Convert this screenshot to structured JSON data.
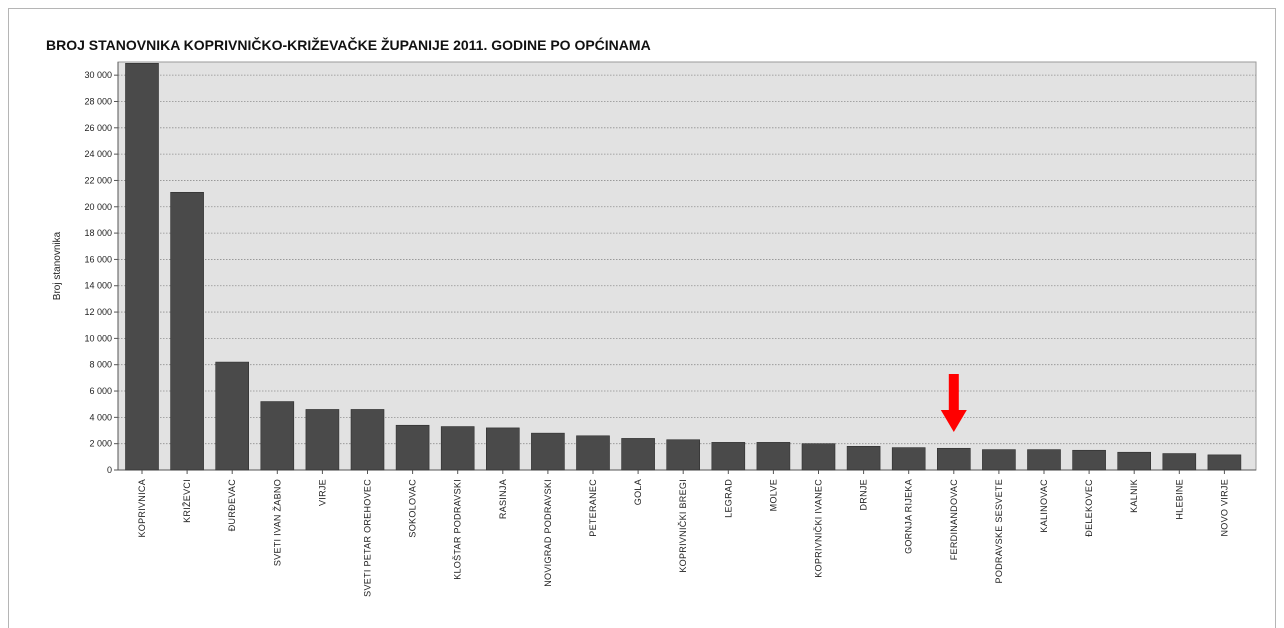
{
  "chart_data": {
    "type": "bar",
    "title": "BROJ STANOVNIKA KOPRIVNIČKO-KRIŽEVAČKE ŽUPANIJE 2011. GODINE PO OPĆINAMA",
    "xlabel": "",
    "ylabel": "Broj stanovnika",
    "ylim": [
      0,
      31000
    ],
    "yticks": [
      0,
      2000,
      4000,
      6000,
      8000,
      10000,
      12000,
      14000,
      16000,
      18000,
      20000,
      22000,
      24000,
      26000,
      28000,
      30000
    ],
    "ytick_labels": [
      "0",
      "2 000",
      "4 000",
      "6 000",
      "8 000",
      "10 000",
      "12 000",
      "14 000",
      "16 000",
      "18 000",
      "20 000",
      "22 000",
      "24 000",
      "26 000",
      "28 000",
      "30 000"
    ],
    "grid": true,
    "categories": [
      "KOPRIVNICA",
      "KRIŽEVCI",
      "ĐURĐEVAC",
      "SVETI IVAN ŽABNO",
      "VIRJE",
      "SVETI PETAR OREHOVEC",
      "SOKOLOVAC",
      "KLOŠTAR PODRAVSKI",
      "RASINJA",
      "NOVIGRAD PODRAVSKI",
      "PETERANEC",
      "GOLA",
      "KOPRIVNIČKI BREGI",
      "LEGRAD",
      "MOLVE",
      "KOPRIVNIČKI IVANEC",
      "DRNJE",
      "GORNJA RIJEKA",
      "FERDINANDOVAC",
      "PODRAVSKE SESVETE",
      "KALINOVAC",
      "ĐELEKOVEC",
      "KALNIK",
      "HLEBINE",
      "NOVO VIRJE"
    ],
    "values": [
      30900,
      21100,
      8200,
      5200,
      4600,
      4600,
      3400,
      3300,
      3200,
      2800,
      2600,
      2400,
      2300,
      2100,
      2100,
      2000,
      1800,
      1700,
      1650,
      1550,
      1550,
      1500,
      1350,
      1250,
      1150
    ],
    "bar_color": "#4a4a4a",
    "plot_background": "#e2e2e2",
    "annotation": {
      "type": "arrow",
      "color": "#ff0000",
      "points_to": "FERDINANDOVAC"
    }
  }
}
